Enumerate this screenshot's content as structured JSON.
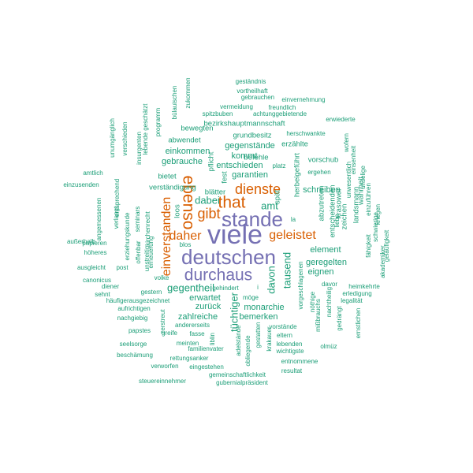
{
  "colors": {
    "teal": "#1b9e77",
    "orange": "#d95f02",
    "purple": "#7570b3"
  },
  "words": [
    {
      "text": "viele",
      "tier": "xxl",
      "color": "purple",
      "rot": 0
    },
    {
      "text": "deutschen",
      "tier": "xl",
      "color": "purple",
      "rot": 0
    },
    {
      "text": "stande",
      "tier": "xl",
      "color": "purple",
      "rot": 0
    },
    {
      "text": "durchaus",
      "tier": "l",
      "color": "purple",
      "rot": 0
    },
    {
      "text": "that",
      "tier": "l",
      "color": "orange",
      "rot": 0
    },
    {
      "text": "ebenso",
      "tier": "l",
      "color": "orange",
      "rot": 90
    },
    {
      "text": "gibt",
      "tier": "ml",
      "color": "orange",
      "rot": 0
    },
    {
      "text": "dienste",
      "tier": "ml",
      "color": "orange",
      "rot": 0
    },
    {
      "text": "einverstanden",
      "tier": "m",
      "color": "orange",
      "rot": -90
    },
    {
      "text": "geleistet",
      "tier": "m",
      "color": "orange",
      "rot": 0
    },
    {
      "text": "daher",
      "tier": "m",
      "color": "orange",
      "rot": 0
    },
    {
      "text": "gegentheil",
      "tier": "sm",
      "color": "teal",
      "rot": 0
    },
    {
      "text": "amt",
      "tier": "sm",
      "color": "teal",
      "rot": 0
    },
    {
      "text": "dabei",
      "tier": "sm",
      "color": "teal",
      "rot": 0
    },
    {
      "text": "davon",
      "tier": "sm",
      "color": "teal",
      "rot": -90
    },
    {
      "text": "tausend",
      "tier": "sm",
      "color": "teal",
      "rot": -90
    },
    {
      "text": "tüchtiger",
      "tier": "sm",
      "color": "teal",
      "rot": -90
    },
    {
      "text": "garantien",
      "tier": "s",
      "color": "teal",
      "rot": 0
    },
    {
      "text": "kommt",
      "tier": "s",
      "color": "teal",
      "rot": 0
    },
    {
      "text": "entschieden",
      "tier": "s",
      "color": "teal",
      "rot": 0
    },
    {
      "text": "gegenstände",
      "tier": "s",
      "color": "teal",
      "rot": 0
    },
    {
      "text": "einkommen",
      "tier": "s",
      "color": "teal",
      "rot": 0
    },
    {
      "text": "gebrauche",
      "tier": "s",
      "color": "teal",
      "rot": 0
    },
    {
      "text": "zahlreiche",
      "tier": "s",
      "color": "teal",
      "rot": 0
    },
    {
      "text": "erwartet",
      "tier": "s",
      "color": "teal",
      "rot": 0
    },
    {
      "text": "zurück",
      "tier": "s",
      "color": "teal",
      "rot": 0
    },
    {
      "text": "monarchie",
      "tier": "s",
      "color": "teal",
      "rot": 0
    },
    {
      "text": "bemerken",
      "tier": "s",
      "color": "teal",
      "rot": 0
    },
    {
      "text": "element",
      "tier": "s",
      "color": "teal",
      "rot": 0
    },
    {
      "text": "geregelten",
      "tier": "s",
      "color": "teal",
      "rot": 0
    },
    {
      "text": "eignen",
      "tier": "s",
      "color": "teal",
      "rot": 0
    },
    {
      "text": "schreiben",
      "tier": "s",
      "color": "teal",
      "rot": 0
    },
    {
      "text": "vorschub",
      "tier": "xs",
      "color": "teal",
      "rot": 0
    },
    {
      "text": "erzählte",
      "tier": "xs",
      "color": "teal",
      "rot": 0
    },
    {
      "text": "grundbesitz",
      "tier": "xs",
      "color": "teal",
      "rot": 0
    },
    {
      "text": "bezirkshauptmannschaft",
      "tier": "xs",
      "color": "teal",
      "rot": 0
    },
    {
      "text": "bewegten",
      "tier": "xs",
      "color": "teal",
      "rot": 0
    },
    {
      "text": "abwendet",
      "tier": "xs",
      "color": "teal",
      "rot": 0
    },
    {
      "text": "pflicht",
      "tier": "xs",
      "color": "teal",
      "rot": -90
    },
    {
      "text": "fest",
      "tier": "xs",
      "color": "teal",
      "rot": -90
    },
    {
      "text": "befehle",
      "tier": "xs",
      "color": "teal",
      "rot": 0
    },
    {
      "text": "herbeigeführt",
      "tier": "xs",
      "color": "teal",
      "rot": -90
    },
    {
      "text": "platz",
      "tier": "xxs",
      "color": "teal",
      "rot": 0
    },
    {
      "text": "ergehen",
      "tier": "xxs",
      "color": "teal",
      "rot": 0
    },
    {
      "text": "verständigung",
      "tier": "xs",
      "color": "teal",
      "rot": 0
    },
    {
      "text": "bietet",
      "tier": "xs",
      "color": "teal",
      "rot": 0
    },
    {
      "text": "blätter",
      "tier": "xs",
      "color": "teal",
      "rot": 0
    },
    {
      "text": "loos",
      "tier": "xs",
      "color": "teal",
      "rot": -90
    },
    {
      "text": "spät",
      "tier": "xs",
      "color": "teal",
      "rot": -90
    },
    {
      "text": "la",
      "tier": "xxs",
      "color": "teal",
      "rot": 0
    },
    {
      "text": "blos",
      "tier": "xxs",
      "color": "teal",
      "rot": 0
    },
    {
      "text": "abzutreten",
      "tier": "xs",
      "color": "teal",
      "rot": -90
    },
    {
      "text": "entscheidenden",
      "tier": "xs",
      "color": "teal",
      "rot": -90
    },
    {
      "text": "krasower",
      "tier": "xs",
      "color": "teal",
      "rot": -90
    },
    {
      "text": "landsmann",
      "tier": "xs",
      "color": "teal",
      "rot": -90
    },
    {
      "text": "zeichen",
      "tier": "xs",
      "color": "teal",
      "rot": -90
    },
    {
      "text": "wahrheit",
      "tier": "xs",
      "color": "teal",
      "rot": -90
    },
    {
      "text": "liebe",
      "tier": "xxs",
      "color": "teal",
      "rot": -90
    },
    {
      "text": "unwesentlich",
      "tier": "xxs",
      "color": "teal",
      "rot": -90
    },
    {
      "text": "einzuführen",
      "tier": "xxs",
      "color": "teal",
      "rot": -90
    },
    {
      "text": "unselige",
      "tier": "xxs",
      "color": "teal",
      "rot": -90
    },
    {
      "text": "kriegen",
      "tier": "xxs",
      "color": "teal",
      "rot": -90
    },
    {
      "text": "schwierige",
      "tier": "xxs",
      "color": "teal",
      "rot": -90
    },
    {
      "text": "fähigkeit",
      "tier": "xxs",
      "color": "teal",
      "rot": -90
    },
    {
      "text": "akademiker",
      "tier": "xxs",
      "color": "teal",
      "rot": -90
    },
    {
      "text": "geläufigkeit",
      "tier": "xxs",
      "color": "teal",
      "rot": -90
    },
    {
      "text": "wofern",
      "tier": "xxs",
      "color": "teal",
      "rot": -90
    },
    {
      "text": "einsenheit",
      "tier": "xxs",
      "color": "teal",
      "rot": -90
    },
    {
      "text": "erwiederte",
      "tier": "xxs",
      "color": "teal",
      "rot": 0
    },
    {
      "text": "herschwankte",
      "tier": "xxs",
      "color": "teal",
      "rot": 0
    },
    {
      "text": "geständnis",
      "tier": "xxs",
      "color": "teal",
      "rot": 0
    },
    {
      "text": "vortheilhaft",
      "tier": "xxs",
      "color": "teal",
      "rot": 0
    },
    {
      "text": "gebrauchen",
      "tier": "xxs",
      "color": "teal",
      "rot": 0
    },
    {
      "text": "einvernehmung",
      "tier": "xxs",
      "color": "teal",
      "rot": 0
    },
    {
      "text": "vermeidung",
      "tier": "xxs",
      "color": "teal",
      "rot": 0
    },
    {
      "text": "freundlich",
      "tier": "xxs",
      "color": "teal",
      "rot": 0
    },
    {
      "text": "spitzbuben",
      "tier": "xxs",
      "color": "teal",
      "rot": 0
    },
    {
      "text": "achtunggebietende",
      "tier": "xxs",
      "color": "teal",
      "rot": 0
    },
    {
      "text": "bülauischen",
      "tier": "xxs",
      "color": "teal",
      "rot": -90
    },
    {
      "text": "zukommen",
      "tier": "xxs",
      "color": "teal",
      "rot": -90
    },
    {
      "text": "programm",
      "tier": "xxs",
      "color": "teal",
      "rot": -90
    },
    {
      "text": "lebende geschätzt",
      "tier": "xxs",
      "color": "teal",
      "rot": -90
    },
    {
      "text": "insurgenten",
      "tier": "xxs",
      "color": "teal",
      "rot": -90
    },
    {
      "text": "verschieden",
      "tier": "xxs",
      "color": "teal",
      "rot": -90
    },
    {
      "text": "unumgänglich",
      "tier": "xxs",
      "color": "teal",
      "rot": -90
    },
    {
      "text": "amtlich",
      "tier": "xxs",
      "color": "teal",
      "rot": 0
    },
    {
      "text": "einzusenden",
      "tier": "xxs",
      "color": "teal",
      "rot": 0
    },
    {
      "text": "entsprechend",
      "tier": "xxs",
      "color": "teal",
      "rot": -90
    },
    {
      "text": "angemessenen",
      "tier": "xxs",
      "color": "teal",
      "rot": -90
    },
    {
      "text": "verlangt",
      "tier": "xxs",
      "color": "teal",
      "rot": -90
    },
    {
      "text": "erziehungskunde",
      "tier": "xxs",
      "color": "teal",
      "rot": -90
    },
    {
      "text": "seminars",
      "tier": "xxs",
      "color": "teal",
      "rot": -90
    },
    {
      "text": "kirchenrecht",
      "tier": "xxs",
      "color": "teal",
      "rot": -90
    },
    {
      "text": "offenbar",
      "tier": "xxs",
      "color": "teal",
      "rot": -90
    },
    {
      "text": "unstreitig",
      "tier": "xxs",
      "color": "teal",
      "rot": -90
    },
    {
      "text": "erneuerung",
      "tier": "xxs",
      "color": "teal",
      "rot": -90
    },
    {
      "text": "außerhalb",
      "tier": "xxs",
      "color": "teal",
      "rot": 0
    },
    {
      "text": "papieren",
      "tier": "xxs",
      "color": "teal",
      "rot": 0
    },
    {
      "text": "höheres",
      "tier": "xxs",
      "color": "teal",
      "rot": 0
    },
    {
      "text": "ausgleicht",
      "tier": "xxs",
      "color": "teal",
      "rot": 0
    },
    {
      "text": "post",
      "tier": "xxs",
      "color": "teal",
      "rot": 0
    },
    {
      "text": "canonicus",
      "tier": "xxs",
      "color": "teal",
      "rot": 0
    },
    {
      "text": "volke",
      "tier": "xxs",
      "color": "teal",
      "rot": 0
    },
    {
      "text": "diener",
      "tier": "xxs",
      "color": "teal",
      "rot": 0
    },
    {
      "text": "sehnt",
      "tier": "xxs",
      "color": "teal",
      "rot": 0
    },
    {
      "text": "gestern",
      "tier": "xxs",
      "color": "teal",
      "rot": 0
    },
    {
      "text": "häufigerausgezeichnet",
      "tier": "xxs",
      "color": "teal",
      "rot": 0
    },
    {
      "text": "aufrichtigen",
      "tier": "xxs",
      "color": "teal",
      "rot": 0
    },
    {
      "text": "nachgiebig",
      "tier": "xxs",
      "color": "teal",
      "rot": 0
    },
    {
      "text": "papstes",
      "tier": "xxs",
      "color": "teal",
      "rot": 0
    },
    {
      "text": "zerstreut",
      "tier": "xxs",
      "color": "teal",
      "rot": -90
    },
    {
      "text": "seelsorge",
      "tier": "xxs",
      "color": "teal",
      "rot": 0
    },
    {
      "text": "beschämung",
      "tier": "xxs",
      "color": "teal",
      "rot": 0
    },
    {
      "text": "verworfen",
      "tier": "xxs",
      "color": "teal",
      "rot": 0
    },
    {
      "text": "steuereinnehmer",
      "tier": "xxs",
      "color": "teal",
      "rot": 0
    },
    {
      "text": "andererseits",
      "tier": "xxs",
      "color": "teal",
      "rot": 0
    },
    {
      "text": "greife",
      "tier": "xxs",
      "color": "teal",
      "rot": 0
    },
    {
      "text": "fasse",
      "tier": "xxs",
      "color": "teal",
      "rot": 0
    },
    {
      "text": "meinten",
      "tier": "xxs",
      "color": "teal",
      "rot": 0
    },
    {
      "text": "familienvater",
      "tier": "xxs",
      "color": "teal",
      "rot": 0
    },
    {
      "text": "rettungsanker",
      "tier": "xxs",
      "color": "teal",
      "rot": 0
    },
    {
      "text": "eingestehen",
      "tier": "xxs",
      "color": "teal",
      "rot": 0
    },
    {
      "text": "gemeinschaftlichkeit",
      "tier": "xxs",
      "color": "teal",
      "rot": 0
    },
    {
      "text": "gubernialpräsident",
      "tier": "xxs",
      "color": "teal",
      "rot": 0
    },
    {
      "text": "liblin",
      "tier": "xxs",
      "color": "teal",
      "rot": -90
    },
    {
      "text": "adelstände",
      "tier": "xxs",
      "color": "teal",
      "rot": -90
    },
    {
      "text": "obliegende",
      "tier": "xxs",
      "color": "teal",
      "rot": -90
    },
    {
      "text": "gestatten",
      "tier": "xxs",
      "color": "teal",
      "rot": -90
    },
    {
      "text": "krakauer",
      "tier": "xxs",
      "color": "teal",
      "rot": -90
    },
    {
      "text": "gehindert",
      "tier": "xxs",
      "color": "teal",
      "rot": 0
    },
    {
      "text": "möge",
      "tier": "xxs",
      "color": "teal",
      "rot": 0
    },
    {
      "text": "i",
      "tier": "xxs",
      "color": "teal",
      "rot": 0
    },
    {
      "text": "vorstände",
      "tier": "xxs",
      "color": "teal",
      "rot": 0
    },
    {
      "text": "eltern",
      "tier": "xxs",
      "color": "teal",
      "rot": 0
    },
    {
      "text": "lebenden",
      "tier": "xxs",
      "color": "teal",
      "rot": 0
    },
    {
      "text": "wichtigste",
      "tier": "xxs",
      "color": "teal",
      "rot": 0
    },
    {
      "text": "entnommene",
      "tier": "xxs",
      "color": "teal",
      "rot": 0
    },
    {
      "text": "resultat",
      "tier": "xxs",
      "color": "teal",
      "rot": 0
    },
    {
      "text": "olmüz",
      "tier": "xxs",
      "color": "teal",
      "rot": 0
    },
    {
      "text": "vorgeschlagenen",
      "tier": "xxs",
      "color": "teal",
      "rot": -90
    },
    {
      "text": "nöthige",
      "tier": "xxs",
      "color": "teal",
      "rot": -90
    },
    {
      "text": "mißbrauchs",
      "tier": "xxs",
      "color": "teal",
      "rot": -90
    },
    {
      "text": "nachtheilig",
      "tier": "xxs",
      "color": "teal",
      "rot": -90
    },
    {
      "text": "gedrängt",
      "tier": "xxs",
      "color": "teal",
      "rot": -90
    },
    {
      "text": "davor",
      "tier": "xxs",
      "color": "teal",
      "rot": 0
    },
    {
      "text": "heimkehrte",
      "tier": "xxs",
      "color": "teal",
      "rot": 0
    },
    {
      "text": "erledigung",
      "tier": "xxs",
      "color": "teal",
      "rot": 0
    },
    {
      "text": "legalität",
      "tier": "xxs",
      "color": "teal",
      "rot": 0
    },
    {
      "text": "ernstlichen",
      "tier": "xxs",
      "color": "teal",
      "rot": -90
    }
  ]
}
